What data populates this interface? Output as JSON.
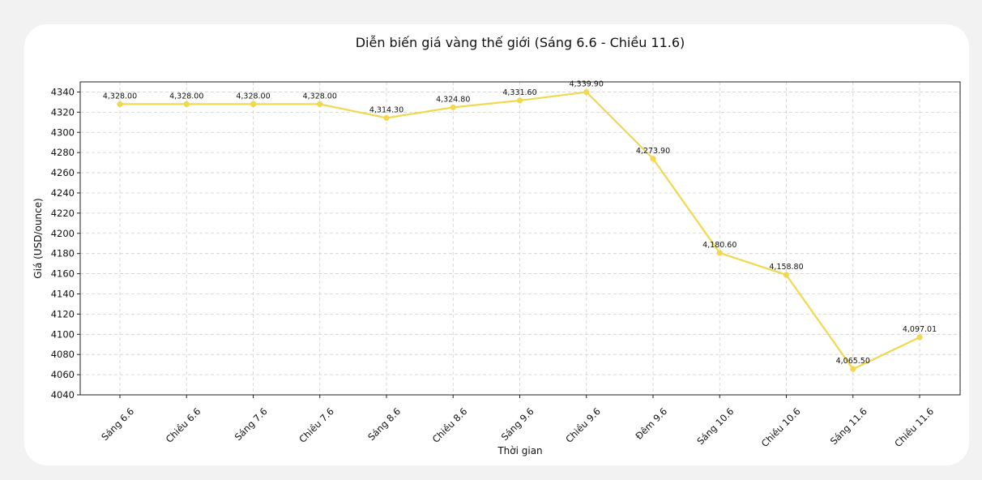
{
  "chart_data": {
    "type": "line",
    "title": "Diễn biến giá vàng thế giới (Sáng 6.6 - Chiều 11.6)",
    "xlabel": "Thời gian",
    "ylabel": "Giá (USD/ounce)",
    "ylim": [
      4040,
      4350
    ],
    "yticks": [
      4040,
      4060,
      4080,
      4100,
      4120,
      4140,
      4160,
      4180,
      4200,
      4220,
      4240,
      4260,
      4280,
      4300,
      4320,
      4340
    ],
    "grid": true,
    "categories": [
      "Sáng 6.6",
      "Chiều 6.6",
      "Sáng 7.6",
      "Chiều 7.6",
      "Sáng 8.6",
      "Chiều 8.6",
      "Sáng 9.6",
      "Chiều 9.6",
      "Đêm 9.6",
      "Sáng 10.6",
      "Chiều 10.6",
      "Sáng 11.6",
      "Chiều 11.6"
    ],
    "series": [
      {
        "values": [
          4328.0,
          4328.0,
          4328.0,
          4328.0,
          4314.3,
          4324.8,
          4331.6,
          4339.9,
          4273.9,
          4180.6,
          4158.8,
          4065.5,
          4097.01
        ],
        "labels": [
          "4,328.00",
          "4,328.00",
          "4,328.00",
          "4,328.00",
          "4,314.30",
          "4,324.80",
          "4,331.60",
          "4,339.90",
          "4,273.90",
          "4,180.60",
          "4,158.80",
          "4,065.50",
          "4,097.01"
        ],
        "color": "#f2d84e"
      }
    ]
  }
}
